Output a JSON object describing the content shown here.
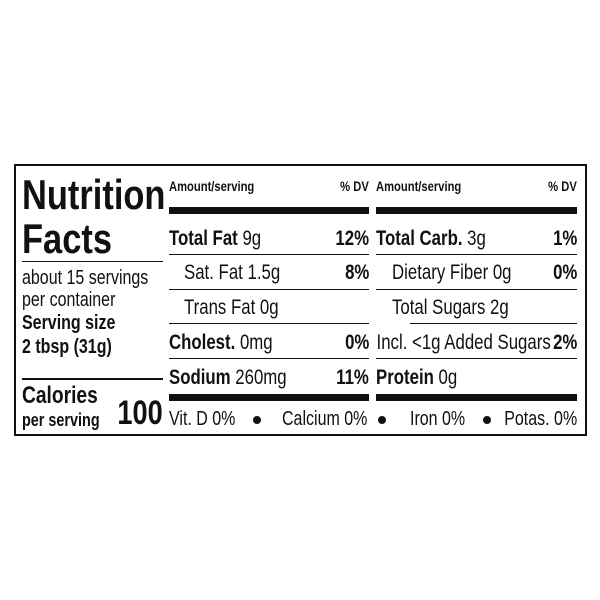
{
  "title_line1": "Nutrition",
  "title_line2": "Facts",
  "servings": {
    "line1": "about 15 servings",
    "line2": "per container"
  },
  "serving_size": {
    "label": "Serving size",
    "value": "2 tbsp (31g)"
  },
  "calories": {
    "label": "Calories",
    "sublabel": "per serving",
    "value": "100"
  },
  "headers": {
    "amount": "Amount/serving",
    "dv": "% DV"
  },
  "left_rows": [
    {
      "name": "Total Fat",
      "amount": "9g",
      "dv": "12%"
    },
    {
      "name": "Sat. Fat 1.5g",
      "dv": "8%"
    },
    {
      "name": "Trans Fat 0g"
    },
    {
      "name": "Cholest.",
      "amount": "0mg",
      "dv": "0%"
    },
    {
      "name": "Sodium",
      "amount": "260mg",
      "dv": "11%"
    }
  ],
  "right_rows": [
    {
      "name": "Total Carb.",
      "amount": "3g",
      "dv": "1%"
    },
    {
      "name": "Dietary Fiber 0g",
      "dv": "0%"
    },
    {
      "name": "Total Sugars 2g"
    },
    {
      "name": "Incl. <1g Added Sugars",
      "dv": "2%"
    },
    {
      "name": "Protein",
      "amount": "0g"
    }
  ],
  "micronutrients": [
    "Vit. D 0%",
    "Calcium 0%",
    "Iron 0%",
    "Potas. 0%"
  ]
}
